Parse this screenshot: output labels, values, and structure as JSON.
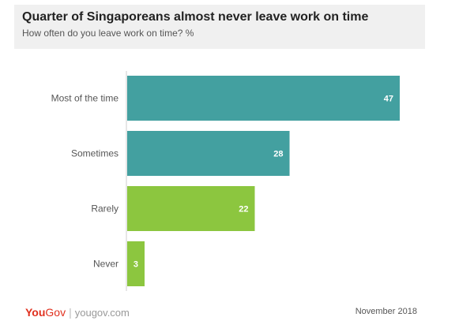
{
  "header": {
    "title": "Quarter of Singaporeans almost never leave work on time",
    "subtitle": "How often do you leave work on time? %"
  },
  "chart_data": {
    "type": "bar",
    "orientation": "horizontal",
    "title": "Quarter of Singaporeans almost never leave work on time",
    "subtitle": "How often do you leave work on time? %",
    "categories": [
      "Most of the time",
      "Sometimes",
      "Rarely",
      "Never"
    ],
    "values": [
      47,
      28,
      22,
      3
    ],
    "colors": [
      "#43a0a0",
      "#43a0a0",
      "#8cc63f",
      "#8cc63f"
    ],
    "xlim": [
      0,
      47
    ],
    "grid": false,
    "legend": "none",
    "data_labels": true
  },
  "footer": {
    "logo_you": "You",
    "logo_gov": "Gov",
    "logo_sep": "|",
    "site": "yougov.com",
    "date": "November 2018"
  },
  "colors": {
    "label_text": "#555555",
    "value_text": "#ffffff",
    "brand_red": "#e0301e"
  }
}
